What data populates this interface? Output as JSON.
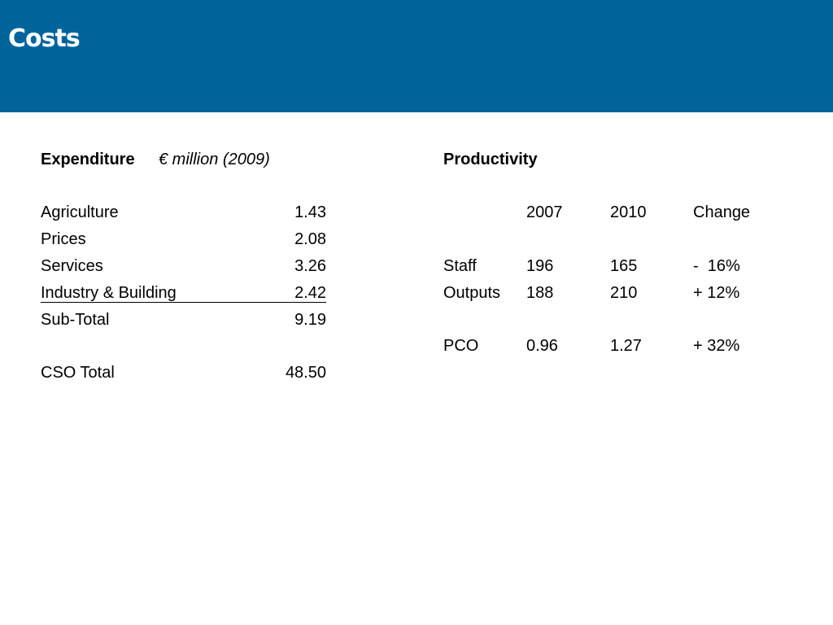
{
  "title": "Costs",
  "colors": {
    "title_bar": "#00649b",
    "title_text": "#ffffff"
  },
  "expenditure": {
    "heading": "Expenditure",
    "unit": "€ million (2009)",
    "rows": [
      {
        "label": "Agriculture",
        "value": "1.43"
      },
      {
        "label": "Prices",
        "value": "2.08"
      },
      {
        "label": "Services",
        "value": "3.26"
      },
      {
        "label": "Industry & Building",
        "value": "2.42"
      },
      {
        "label": "Sub-Total",
        "value": "9.19"
      }
    ],
    "total": {
      "label": "CSO Total",
      "value": "48.50"
    }
  },
  "productivity": {
    "heading": "Productivity",
    "columns": [
      "2007",
      "2010",
      "Change"
    ],
    "rows": [
      {
        "label": "Staff",
        "y2007": "196",
        "y2010": "165",
        "change": "-  16%"
      },
      {
        "label": "Outputs",
        "y2007": "188",
        "y2010": "210",
        "change": "+ 12%"
      },
      {
        "label": "PCO",
        "y2007": "0.96",
        "y2010": "1.27",
        "change": "+ 32%"
      }
    ]
  }
}
